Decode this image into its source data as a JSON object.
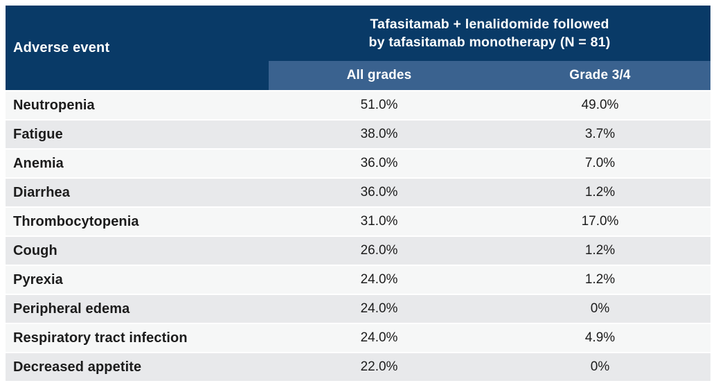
{
  "table": {
    "corner_header": "Adverse event",
    "group_header_line1": "Tafasitamab + lenalidomide followed",
    "group_header_line2": "by tafasitamab monotherapy (N = 81)",
    "sub_headers": [
      "All grades",
      "Grade 3/4"
    ],
    "rows": [
      {
        "event": "Neutropenia",
        "all_grades": "51.0%",
        "grade_3_4": "49.0%"
      },
      {
        "event": "Fatigue",
        "all_grades": "38.0%",
        "grade_3_4": "3.7%"
      },
      {
        "event": "Anemia",
        "all_grades": "36.0%",
        "grade_3_4": "7.0%"
      },
      {
        "event": "Diarrhea",
        "all_grades": "36.0%",
        "grade_3_4": "1.2%"
      },
      {
        "event": "Thrombocytopenia",
        "all_grades": "31.0%",
        "grade_3_4": "17.0%"
      },
      {
        "event": "Cough",
        "all_grades": "26.0%",
        "grade_3_4": "1.2%"
      },
      {
        "event": "Pyrexia",
        "all_grades": "24.0%",
        "grade_3_4": "1.2%"
      },
      {
        "event": "Peripheral edema",
        "all_grades": "24.0%",
        "grade_3_4": "0%"
      },
      {
        "event": "Respiratory tract infection",
        "all_grades": "24.0%",
        "grade_3_4": "4.9%"
      },
      {
        "event": "Decreased appetite",
        "all_grades": "22.0%",
        "grade_3_4": "0%"
      }
    ]
  },
  "colors": {
    "header_navy": "#093a67",
    "subheader_blue": "#3a628f",
    "row_light": "#f6f7f7",
    "row_dark": "#e8e9eb"
  },
  "chart_data": {
    "type": "table",
    "title": "Tafasitamab + lenalidomide followed by tafasitamab monotherapy (N = 81)",
    "columns": [
      "Adverse event",
      "All grades",
      "Grade 3/4"
    ],
    "rows": [
      [
        "Neutropenia",
        "51.0%",
        "49.0%"
      ],
      [
        "Fatigue",
        "38.0%",
        "3.7%"
      ],
      [
        "Anemia",
        "36.0%",
        "7.0%"
      ],
      [
        "Diarrhea",
        "36.0%",
        "1.2%"
      ],
      [
        "Thrombocytopenia",
        "31.0%",
        "17.0%"
      ],
      [
        "Cough",
        "26.0%",
        "1.2%"
      ],
      [
        "Pyrexia",
        "24.0%",
        "1.2%"
      ],
      [
        "Peripheral edema",
        "24.0%",
        "0%"
      ],
      [
        "Respiratory tract infection",
        "24.0%",
        "4.9%"
      ],
      [
        "Decreased appetite",
        "22.0%",
        "0%"
      ]
    ]
  }
}
